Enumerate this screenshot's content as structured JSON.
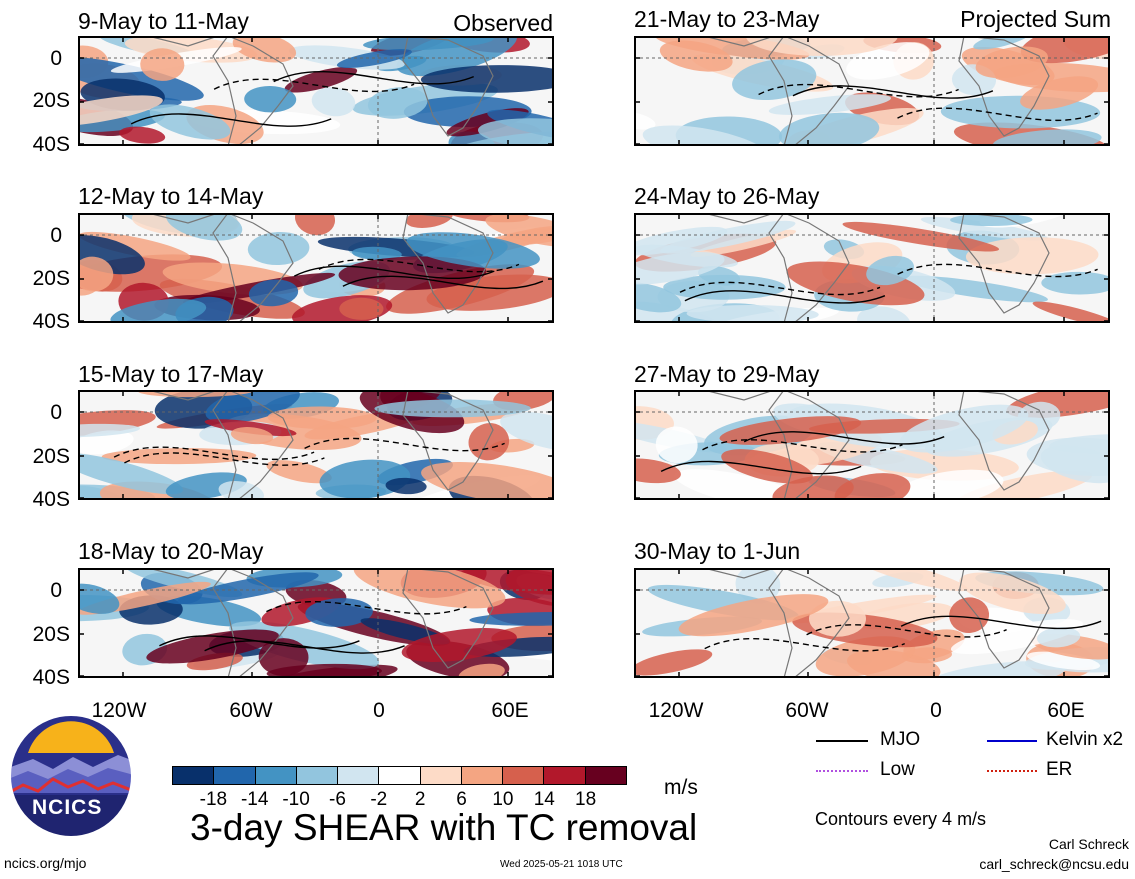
{
  "panels": [
    {
      "title": "9-May to 11-May",
      "tag": "Observed"
    },
    {
      "title": "12-May to 14-May",
      "tag": ""
    },
    {
      "title": "15-May to 17-May",
      "tag": ""
    },
    {
      "title": "18-May to 20-May",
      "tag": ""
    },
    {
      "title": "21-May to 23-May",
      "tag": "Projected Sum"
    },
    {
      "title": "24-May to 26-May",
      "tag": ""
    },
    {
      "title": "27-May to 29-May",
      "tag": ""
    },
    {
      "title": "30-May to 1-Jun",
      "tag": ""
    }
  ],
  "axes": {
    "lat_labels": [
      "0",
      "20S",
      "40S"
    ],
    "lon_labels": [
      "120W",
      "60W",
      "0",
      "60E"
    ]
  },
  "colorbar": {
    "colors": [
      "#08306b",
      "#2166ac",
      "#4393c3",
      "#92c5de",
      "#d1e5f0",
      "#ffffff",
      "#fddbc7",
      "#f4a582",
      "#d6604d",
      "#b2182b",
      "#67001f"
    ],
    "labels": [
      "-18",
      "-14",
      "-10",
      "-6",
      "-2",
      "2",
      "6",
      "10",
      "14",
      "18"
    ],
    "units": "m/s"
  },
  "legend": {
    "items": [
      {
        "label": "MJO",
        "color": "#000000"
      },
      {
        "label": "Kelvin x2",
        "color": "#0000cc"
      },
      {
        "label": "Low",
        "color": "#b050e0"
      },
      {
        "label": "ER",
        "color": "#d02010"
      }
    ],
    "contour_note": "Contours every 4 m/s"
  },
  "main_title": "3-day SHEAR with TC removal",
  "logo_text": "NCICS",
  "footer": {
    "site": "ncics.org/mjo",
    "timestamp": "Wed 2025-05-21 1018 UTC",
    "author": "Carl Schreck",
    "email": "carl_schreck@ncsu.edu"
  }
}
